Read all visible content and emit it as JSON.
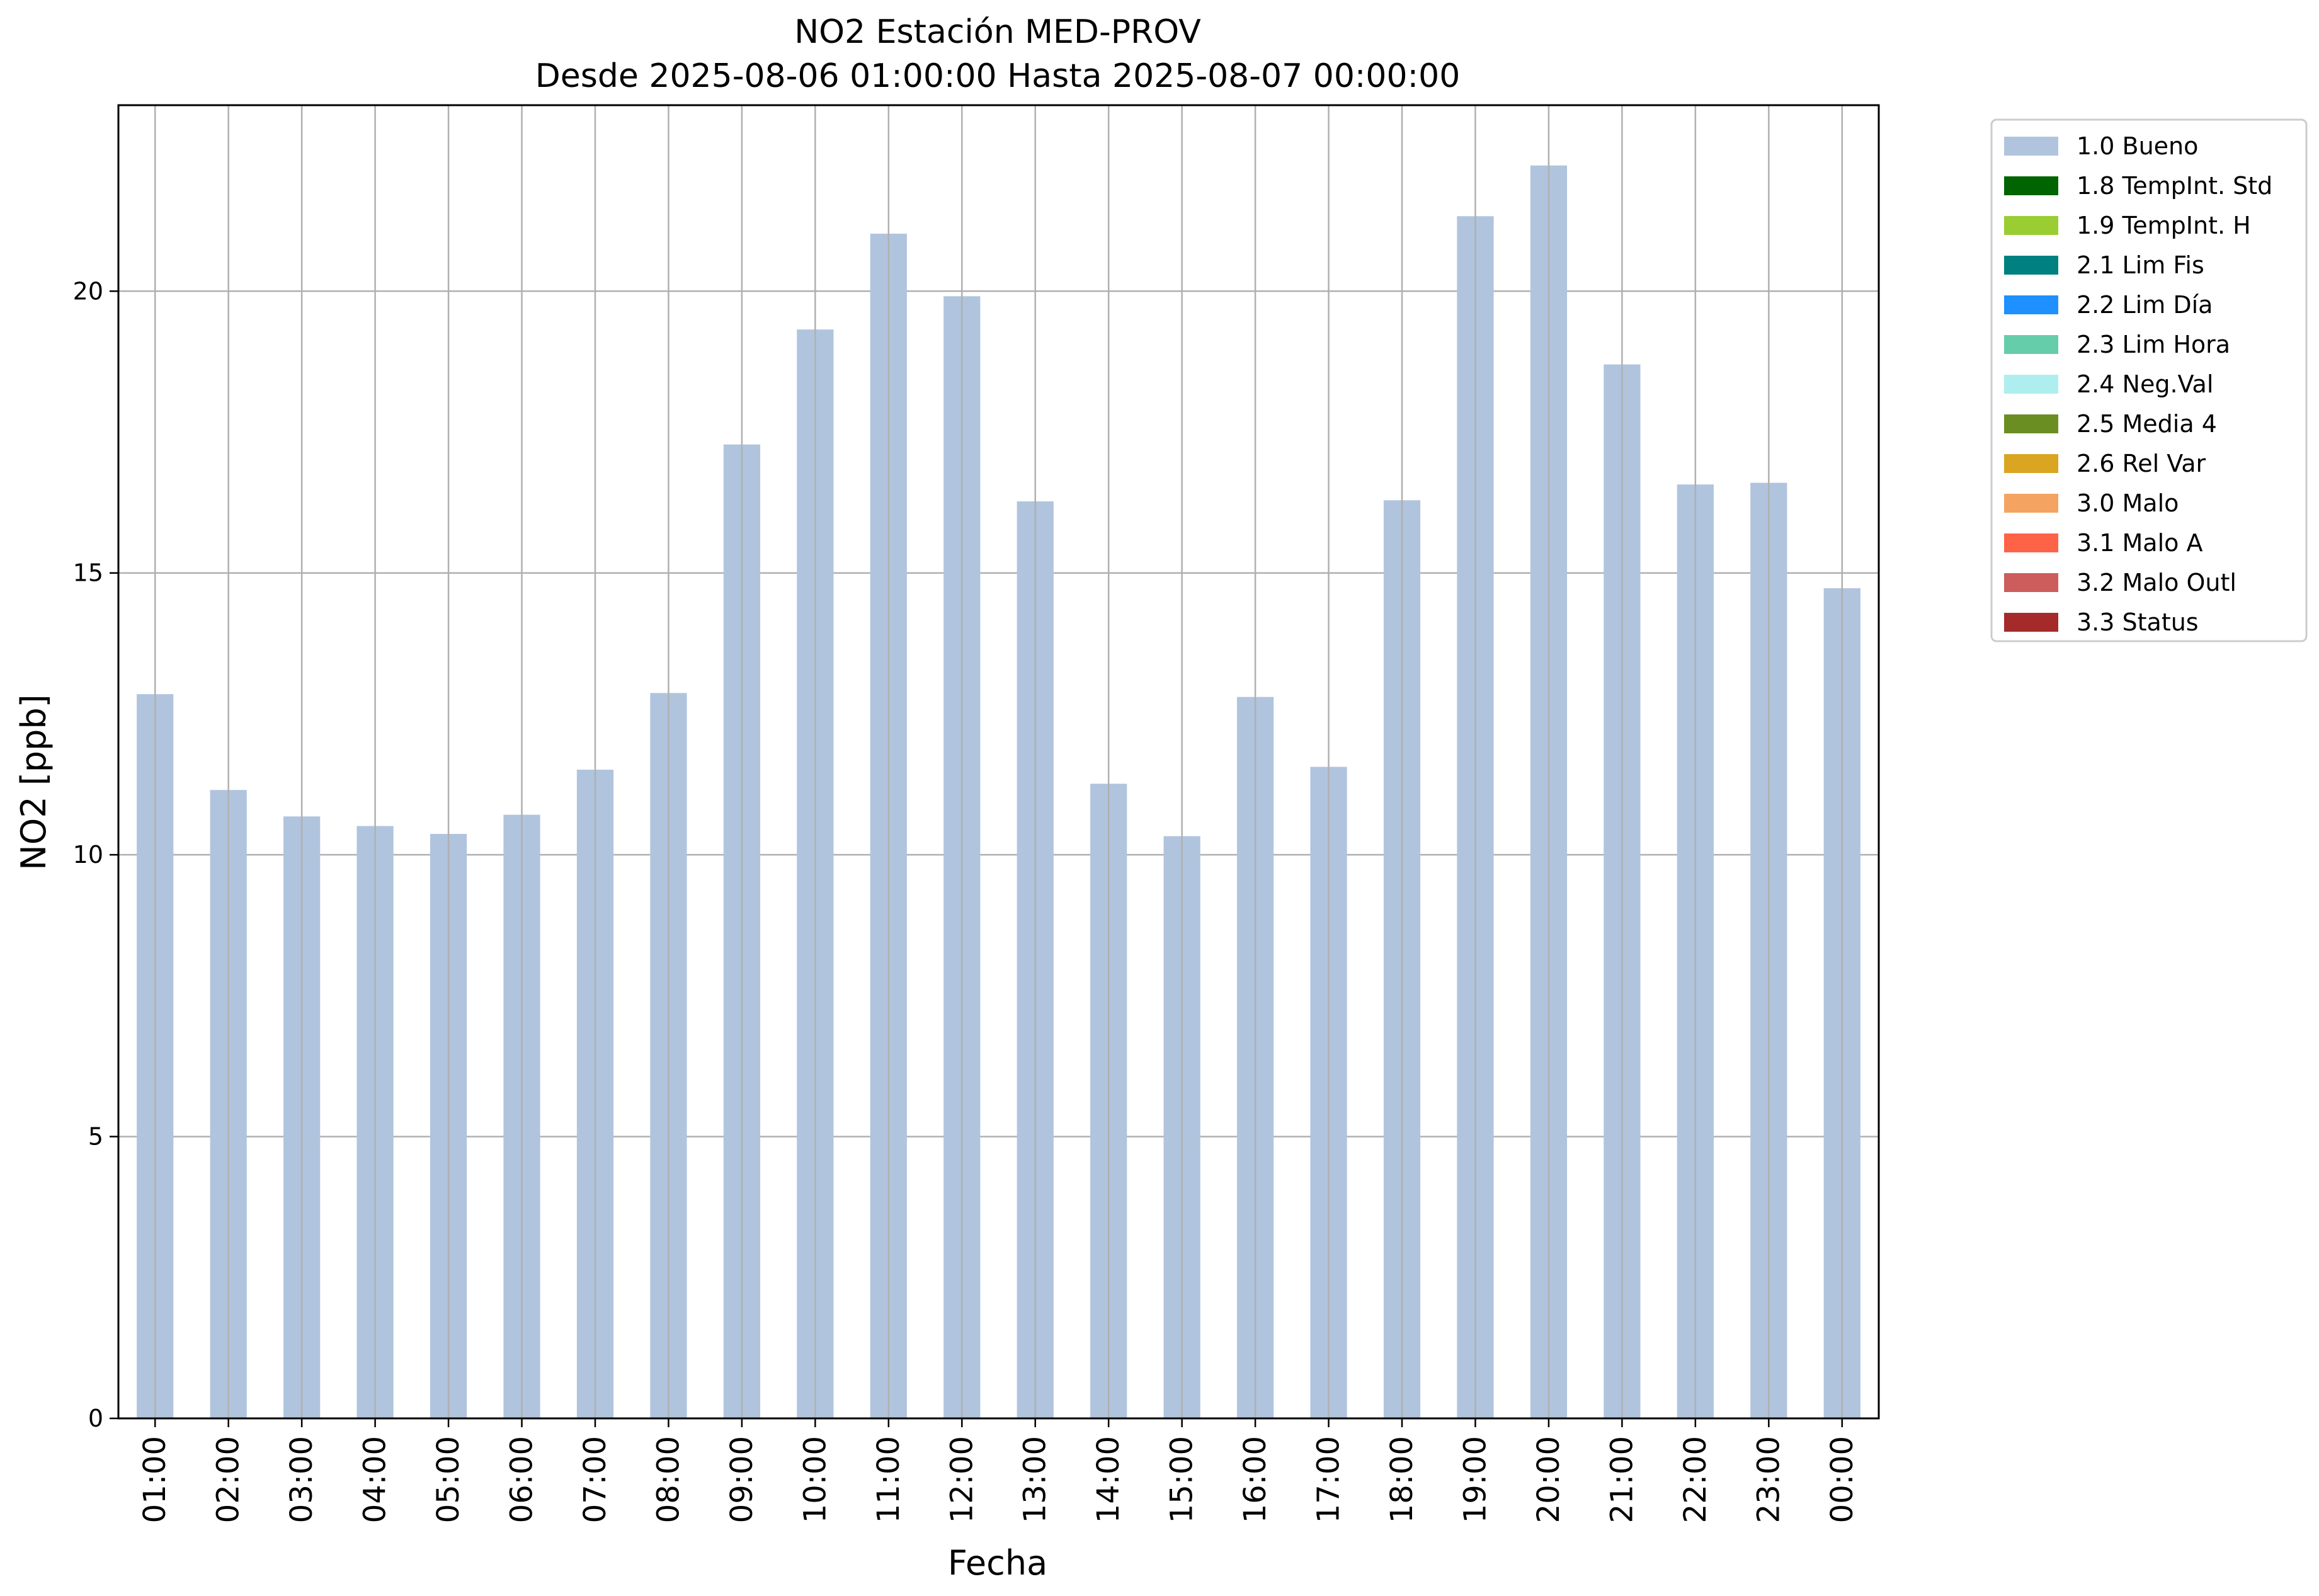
{
  "chart_data": {
    "type": "bar",
    "title": "NO2 Estación MED-PROV",
    "subtitle": "Desde 2025-08-06 01:00:00 Hasta 2025-08-07 00:00:00",
    "xlabel": "Fecha",
    "ylabel": "NO2 [ppb]",
    "ylim": [
      0,
      23.3
    ],
    "yticks": [
      0,
      5,
      10,
      15,
      20
    ],
    "grid": true,
    "legend_position": "outside-right",
    "categories": [
      "01:00",
      "02:00",
      "03:00",
      "04:00",
      "05:00",
      "06:00",
      "07:00",
      "08:00",
      "09:00",
      "10:00",
      "11:00",
      "12:00",
      "13:00",
      "14:00",
      "15:00",
      "16:00",
      "17:00",
      "18:00",
      "19:00",
      "20:00",
      "21:00",
      "22:00",
      "23:00",
      "00:00"
    ],
    "series": [
      {
        "name": "1.0 Bueno",
        "color": "#b0c4de",
        "values": [
          12.85,
          11.15,
          10.68,
          10.51,
          10.37,
          10.71,
          11.51,
          12.87,
          17.28,
          19.32,
          21.02,
          19.91,
          16.27,
          11.26,
          10.33,
          12.8,
          11.56,
          16.29,
          21.33,
          22.23,
          18.7,
          16.57,
          16.6,
          14.73
        ]
      }
    ],
    "legend": [
      {
        "label": "1.0 Bueno",
        "color": "#b0c4de"
      },
      {
        "label": "1.8 TempInt. Std",
        "color": "#006400"
      },
      {
        "label": "1.9 TempInt. H",
        "color": "#9acd32"
      },
      {
        "label": "2.1 Lim Fis",
        "color": "#008080"
      },
      {
        "label": "2.2 Lim Día",
        "color": "#1e90ff"
      },
      {
        "label": "2.3 Lim Hora",
        "color": "#66cdaa"
      },
      {
        "label": "2.4 Neg.Val",
        "color": "#afeeee"
      },
      {
        "label": "2.5 Media 4",
        "color": "#6b8e23"
      },
      {
        "label": "2.6 Rel Var",
        "color": "#daa520"
      },
      {
        "label": "3.0 Malo",
        "color": "#f4a460"
      },
      {
        "label": "3.1 Malo A",
        "color": "#ff6347"
      },
      {
        "label": "3.2 Malo Outl",
        "color": "#cd5c5c"
      },
      {
        "label": "3.3 Status",
        "color": "#a52a2a"
      }
    ]
  }
}
